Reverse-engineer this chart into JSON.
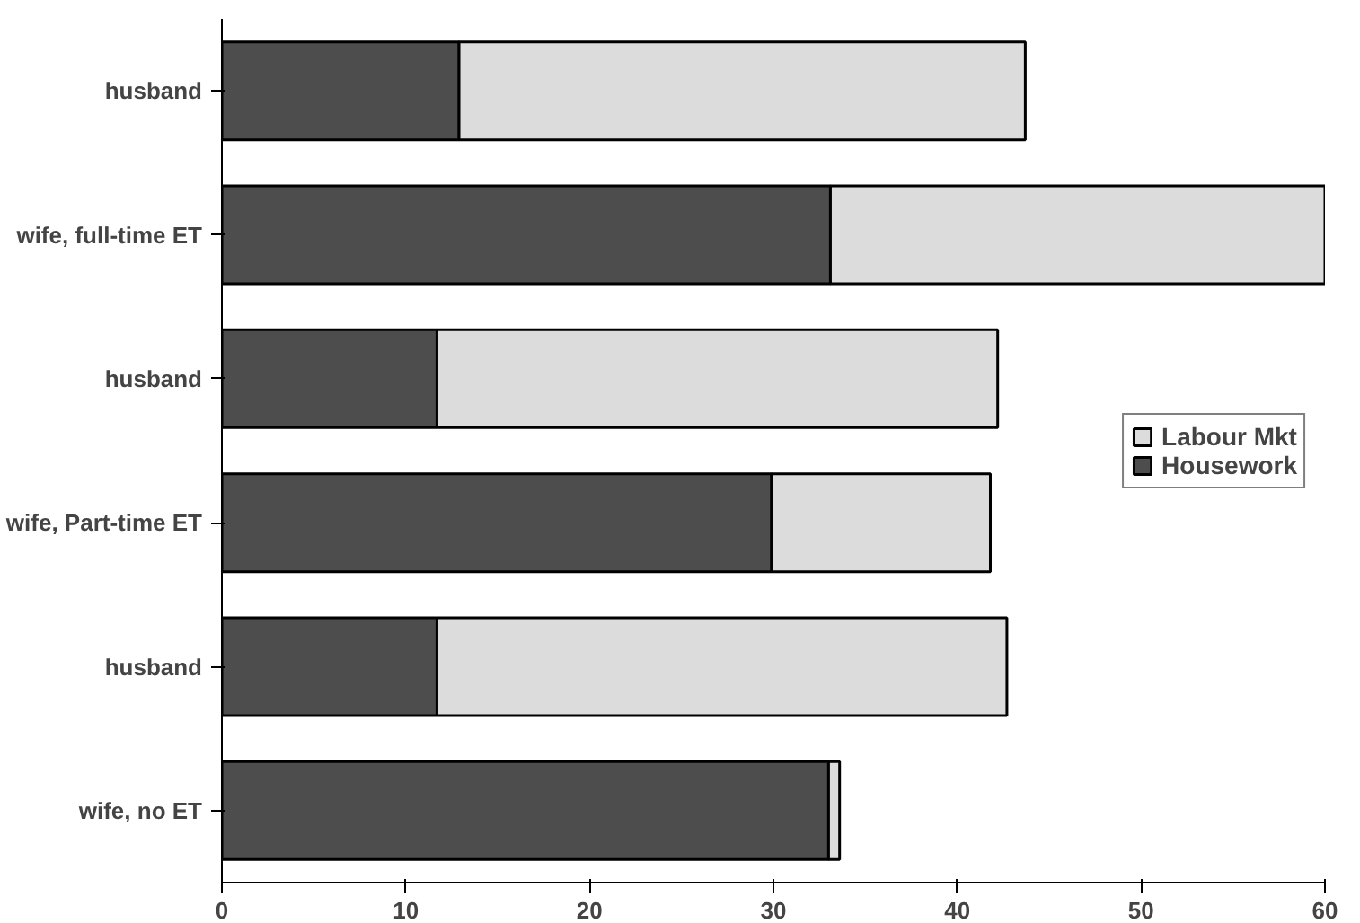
{
  "chart_data": {
    "type": "bar",
    "orientation": "horizontal",
    "stacked": true,
    "categories": [
      "husband",
      "wife, full-time ET",
      "husband",
      "wife, Part-time ET",
      "husband",
      "wife, no ET"
    ],
    "series": [
      {
        "name": "Housework",
        "color": "#4d4d4d",
        "values": [
          12.9,
          33.1,
          11.7,
          29.9,
          11.7,
          33.0
        ]
      },
      {
        "name": "Labour Mkt",
        "color": "#dcdcdc",
        "values": [
          30.8,
          27.1,
          30.5,
          11.9,
          31.0,
          0.6
        ]
      }
    ],
    "xlim": [
      0,
      60
    ],
    "xticks": [
      0,
      10,
      20,
      30,
      40,
      50,
      60
    ],
    "grid": false,
    "legend": "right"
  }
}
